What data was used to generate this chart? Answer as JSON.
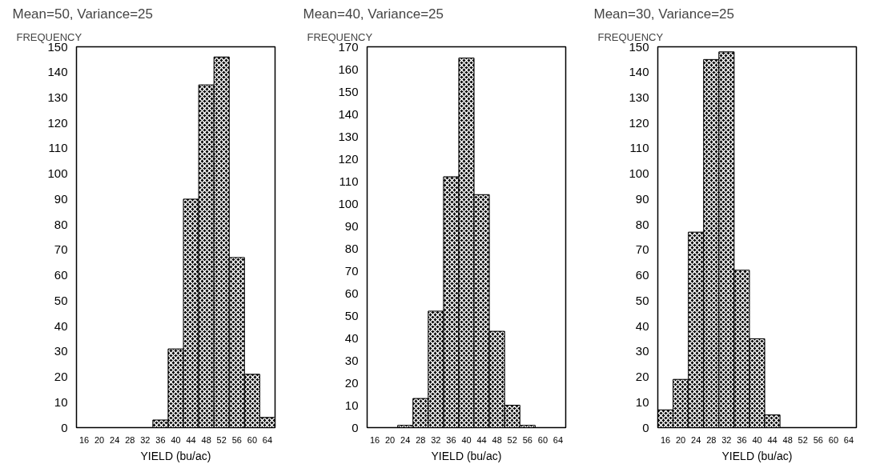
{
  "chart_data": [
    {
      "type": "histogram",
      "title": "Mean=50, Variance=25",
      "ylabel": "FREQUENCY",
      "xlabel": "YIELD (bu/ac)",
      "bins": [
        14,
        18,
        22,
        26,
        30,
        34,
        38,
        42,
        46,
        50,
        54,
        58,
        62,
        66
      ],
      "values": [
        0,
        0,
        0,
        0,
        0,
        3,
        31,
        90,
        135,
        146,
        67,
        21,
        4
      ],
      "color": "#000000",
      "xlim": [
        14,
        66
      ],
      "xticks": [
        16,
        20,
        24,
        28,
        32,
        36,
        40,
        44,
        48,
        52,
        56,
        60,
        64
      ],
      "ylim": [
        0,
        150
      ],
      "yticks": [
        0,
        10,
        20,
        30,
        40,
        50,
        60,
        70,
        80,
        90,
        100,
        110,
        120,
        130,
        140,
        150
      ]
    },
    {
      "type": "histogram",
      "title": "Mean=40, Variance=25",
      "ylabel": "FREQUENCY",
      "xlabel": "YIELD (bu/ac)",
      "bins": [
        14,
        18,
        22,
        26,
        30,
        34,
        38,
        42,
        46,
        50,
        54,
        58,
        62,
        66
      ],
      "values": [
        0,
        0,
        1,
        13,
        52,
        112,
        165,
        104,
        43,
        10,
        1,
        0,
        0
      ],
      "color": "#000000",
      "xlim": [
        14,
        66
      ],
      "xticks": [
        16,
        20,
        24,
        28,
        32,
        36,
        40,
        44,
        48,
        52,
        56,
        60,
        64
      ],
      "ylim": [
        0,
        170
      ],
      "yticks": [
        0,
        10,
        20,
        30,
        40,
        50,
        60,
        70,
        80,
        90,
        100,
        110,
        120,
        130,
        140,
        150,
        160,
        170
      ]
    },
    {
      "type": "histogram",
      "title": "Mean=30, Variance=25",
      "ylabel": "FREQUENCY",
      "xlabel": "YIELD (bu/ac)",
      "bins": [
        14,
        18,
        22,
        26,
        30,
        34,
        38,
        42,
        46,
        50,
        54,
        58,
        62,
        66
      ],
      "values": [
        7,
        19,
        77,
        145,
        148,
        62,
        35,
        5,
        0,
        0,
        0,
        0,
        0
      ],
      "color": "#000000",
      "xlim": [
        14,
        66
      ],
      "xticks": [
        16,
        20,
        24,
        28,
        32,
        36,
        40,
        44,
        48,
        52,
        56,
        60,
        64
      ],
      "ylim": [
        0,
        150
      ],
      "yticks": [
        0,
        10,
        20,
        30,
        40,
        50,
        60,
        70,
        80,
        90,
        100,
        110,
        120,
        130,
        140,
        150
      ]
    }
  ]
}
